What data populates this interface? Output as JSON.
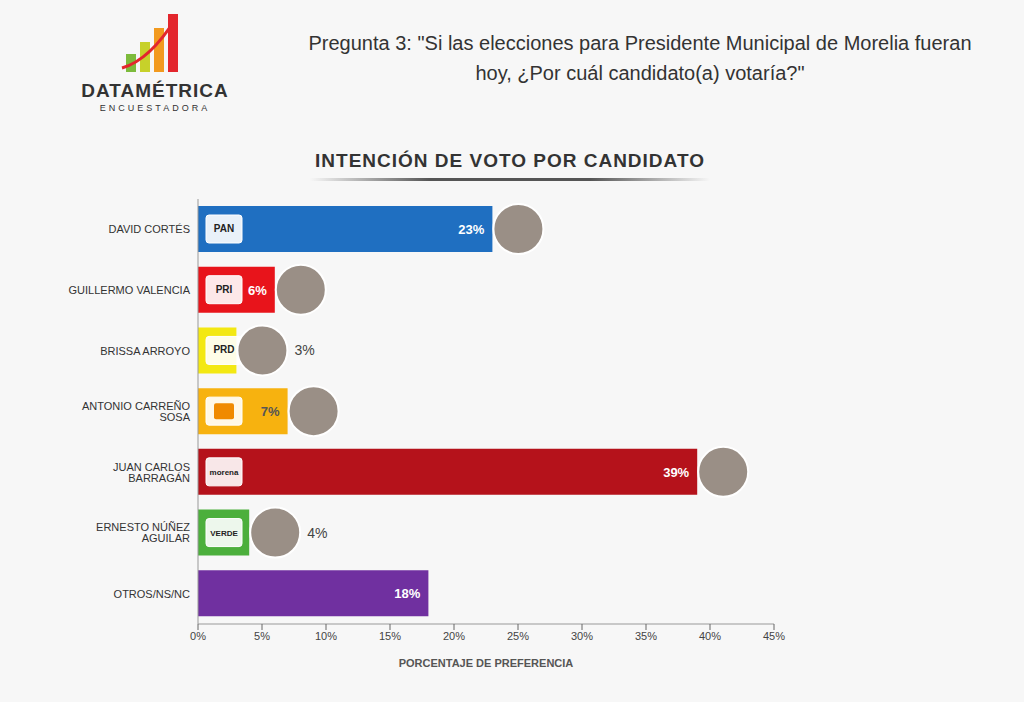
{
  "header": {
    "logo": "DATAMÉTRICA",
    "logo_tagline": "ENCUESTADORA",
    "question": "Pregunta 3: \"Si las elecciones para Presidente Municipal de Morelia fueran hoy, ¿Por cuál candidato(a) votaría?\""
  },
  "chart_data": {
    "type": "bar",
    "orientation": "horizontal",
    "title": "INTENCIÓN DE VOTO POR CANDIDATO",
    "x_label": "PORCENTAJE DE PREFERENCIA",
    "categories": [
      "DAVID CORTÉS",
      "GUILLERMO VALENCIA",
      "BRISSA ARROYO",
      "ANTONIO CARREÑO SOSA",
      "JUAN CARLOS BARRAGÁN",
      "ERNESTO NÚÑEZ AGUILAR",
      "OTROS/NS/NC"
    ],
    "values": [
      23,
      6,
      3,
      7,
      39,
      4,
      18
    ],
    "value_labels": [
      "23%",
      "6%",
      "3%",
      "7%",
      "39%",
      "4%",
      "18%"
    ],
    "party_labels": [
      "PAN",
      "PRI",
      "PRD",
      null,
      "morena",
      "VERDE",
      null
    ],
    "colors": [
      "#1f6fc1",
      "#e8141b",
      "#f3e812",
      "#f7b20f",
      "#b5121b",
      "#4caf3c",
      "#7030a0"
    ],
    "xlim": [
      0,
      45
    ],
    "xticks": [
      {
        "value": 0,
        "label": "0%"
      },
      {
        "value": 5,
        "label": "5%"
      },
      {
        "value": 10,
        "label": "10%"
      },
      {
        "value": 15,
        "label": "15%"
      },
      {
        "value": 20,
        "label": "20%"
      },
      {
        "value": 25,
        "label": "25%"
      },
      {
        "value": 30,
        "label": "30%"
      },
      {
        "value": 35,
        "label": "35%"
      },
      {
        "value": 40,
        "label": "40%"
      },
      {
        "value": 45,
        "label": "45%"
      }
    ],
    "grid": false,
    "data_labels": true
  }
}
